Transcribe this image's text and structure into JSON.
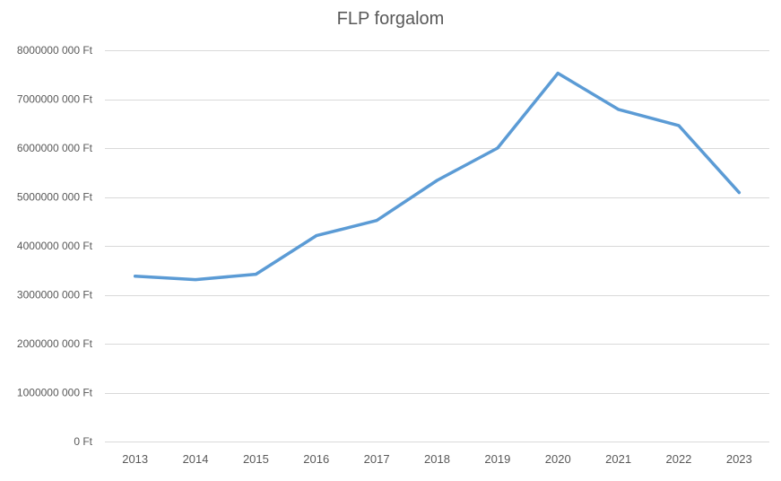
{
  "chart_data": {
    "type": "line",
    "title": "FLP forgalom",
    "xlabel": "",
    "ylabel": "",
    "categories": [
      "2013",
      "2014",
      "2015",
      "2016",
      "2017",
      "2018",
      "2019",
      "2020",
      "2021",
      "2022",
      "2023"
    ],
    "series": [
      {
        "values": [
          3380000000,
          3310000000,
          3420000000,
          4210000000,
          4520000000,
          5340000000,
          6000000000,
          7530000000,
          6790000000,
          6460000000,
          5090000000
        ],
        "color": "#5b9bd5"
      }
    ],
    "ylim": [
      0,
      8000000000
    ],
    "yticks": [
      0,
      1000000000,
      2000000000,
      3000000000,
      4000000000,
      5000000000,
      6000000000,
      7000000000,
      8000000000
    ],
    "ytick_labels": [
      "0 Ft",
      "1000000 000 Ft",
      "2000000 000 Ft",
      "3000000 000 Ft",
      "4000000 000 Ft",
      "5000000 000 Ft",
      "6000000 000 Ft",
      "7000000 000 Ft",
      "8000000 000 Ft"
    ],
    "grid": true,
    "legend": "none",
    "colors": {
      "line": "#5b9bd5",
      "grid": "#d9d9d9",
      "text": "#595959"
    }
  }
}
